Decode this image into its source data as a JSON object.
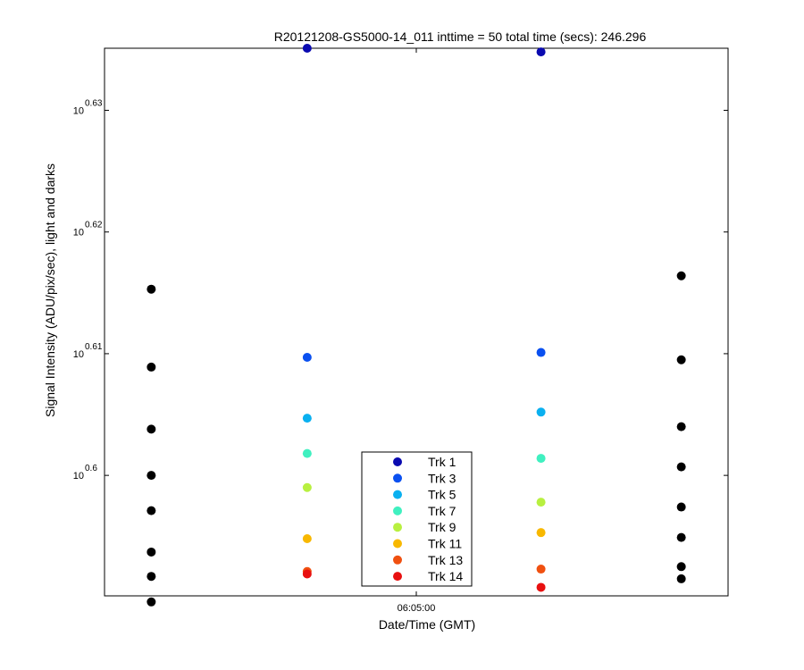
{
  "chart_data": {
    "type": "scatter",
    "title": "R20121208-GS5000-14_011 inttime = 50 total time (secs): 246.296",
    "xlabel": "Date/Time (GMT)",
    "ylabel": "Signal Intensity (ADU/pix/sec), light and darks",
    "y_scale": "log",
    "x_ticks": [
      {
        "value": 2,
        "label": "06:05:00"
      }
    ],
    "y_ticks": [
      {
        "base": "10",
        "exp": "0.6",
        "value": 0.6
      },
      {
        "base": "10",
        "exp": "0.61",
        "value": 0.61
      },
      {
        "base": "10",
        "exp": "0.62",
        "value": 0.62
      },
      {
        "base": "10",
        "exp": "0.63",
        "value": 0.63
      }
    ],
    "xlim": [
      0,
      4
    ],
    "ylim_exponent": [
      0.5901,
      0.6351
    ],
    "legend_position": "bottom-center",
    "series": [
      {
        "name": "Trk 1",
        "color": "#0a0ab0",
        "exponents": [
          0.6351,
          0.6348
        ]
      },
      {
        "name": "Trk 3",
        "color": "#0a50f0",
        "exponents": [
          0.6097,
          0.6101
        ]
      },
      {
        "name": "Trk 5",
        "color": "#0ab0f0",
        "exponents": [
          0.6047,
          0.6052
        ]
      },
      {
        "name": "Trk 7",
        "color": "#40f0c0",
        "exponents": [
          0.6018,
          0.6014
        ]
      },
      {
        "name": "Trk 9",
        "color": "#b8f040",
        "exponents": [
          0.599,
          0.5978
        ]
      },
      {
        "name": "Trk 11",
        "color": "#f8b800",
        "exponents": [
          0.5948,
          0.5953
        ]
      },
      {
        "name": "Trk 13",
        "color": "#f05010",
        "exponents": [
          0.5921,
          0.5923
        ]
      },
      {
        "name": "Trk 14",
        "color": "#e81010",
        "exponents": [
          0.5919,
          0.5908
        ]
      }
    ],
    "darks": {
      "color": "#000000",
      "points": [
        {
          "x": 0.3,
          "exponents": [
            0.6153,
            0.6089,
            0.6038,
            0.6,
            0.5971,
            0.5937,
            0.5917,
            0.5896
          ]
        },
        {
          "x": 3.7,
          "exponents": [
            0.6164,
            0.6095,
            0.604,
            0.6007,
            0.5974,
            0.5949,
            0.5925,
            0.5915
          ]
        }
      ]
    },
    "series_x": [
      1.3,
      2.8
    ],
    "grid": false
  }
}
